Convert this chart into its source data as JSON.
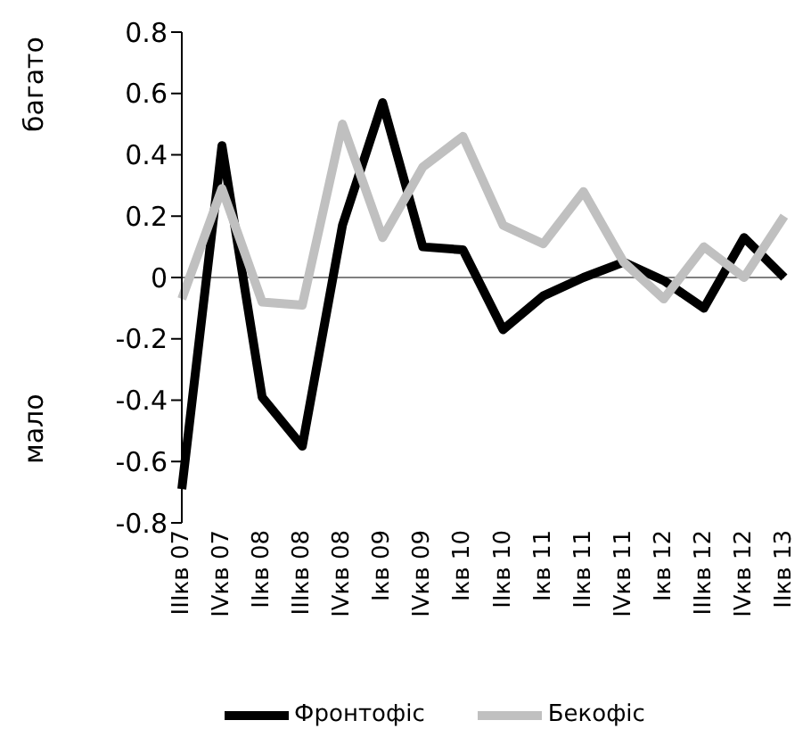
{
  "chart_data": {
    "type": "line",
    "categories": [
      "IIIкв 07",
      "IVкв 07",
      "IIкв 08",
      "IIIкв 08",
      "IVкв 08",
      "Iкв 09",
      "IVкв 09",
      "Iкв 10",
      "IIкв 10",
      "Iкв 11",
      "IIкв 11",
      "IVкв 11",
      "Iкв 12",
      "IIIкв 12",
      "IVкв 12",
      "IIкв 13"
    ],
    "series": [
      {
        "name": "Фронтофіс",
        "color": "#000000",
        "values": [
          -0.69,
          0.43,
          -0.39,
          -0.55,
          0.17,
          0.57,
          0.1,
          0.09,
          -0.17,
          -0.06,
          0.0,
          0.05,
          -0.01,
          -0.1,
          0.13,
          0.0
        ]
      },
      {
        "name": "Бекофіс",
        "color": "#c0c0c0",
        "values": [
          -0.07,
          0.29,
          -0.08,
          -0.09,
          0.5,
          0.13,
          0.36,
          0.46,
          0.17,
          0.11,
          0.28,
          0.05,
          -0.07,
          0.1,
          0.0,
          0.2
        ]
      }
    ],
    "ylim": [
      -0.8,
      0.8
    ],
    "yticks": [
      -0.8,
      -0.6,
      -0.4,
      -0.2,
      0,
      0.2,
      0.4,
      0.6,
      0.8
    ],
    "annotations": [
      "багато",
      "мало"
    ],
    "ref_lines": [
      {
        "axis": "y",
        "value": 0,
        "color": "#808080"
      }
    ],
    "legend": "bottom",
    "marker": "none",
    "line_style": "solid"
  }
}
